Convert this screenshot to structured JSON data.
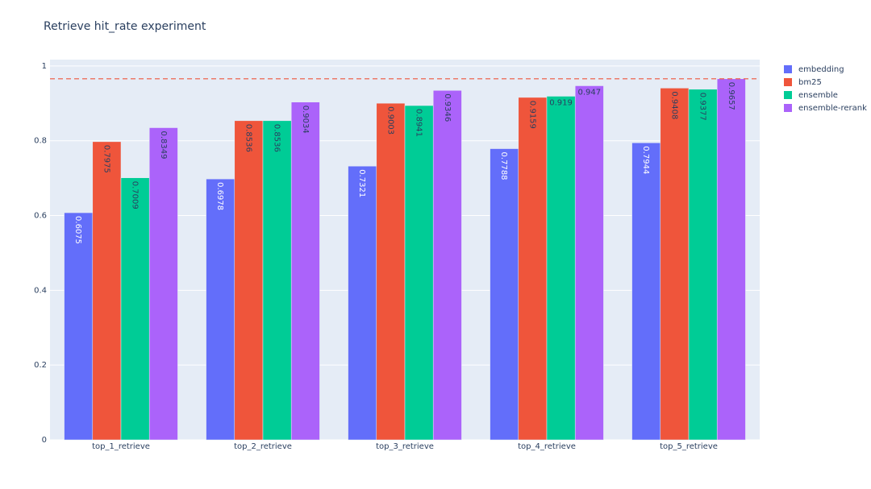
{
  "chart_data": {
    "type": "bar",
    "title": "Retrieve hit_rate experiment",
    "categories": [
      "top_1_retrieve",
      "top_2_retrieve",
      "top_3_retrieve",
      "top_4_retrieve",
      "top_5_retrieve"
    ],
    "series": [
      {
        "name": "embedding",
        "color": "#636efa",
        "values": [
          0.6075,
          0.6978,
          0.7321,
          0.7788,
          0.7944
        ]
      },
      {
        "name": "bm25",
        "color": "#ef553b",
        "values": [
          0.7975,
          0.8536,
          0.9003,
          0.9159,
          0.9408
        ]
      },
      {
        "name": "ensemble",
        "color": "#00cc96",
        "values": [
          0.7009,
          0.8536,
          0.8941,
          0.919,
          0.9377
        ]
      },
      {
        "name": "ensemble-rerank",
        "color": "#ab63fa",
        "values": [
          0.8349,
          0.9034,
          0.9346,
          0.947,
          0.9657
        ]
      }
    ],
    "ylim": [
      0,
      1.017
    ],
    "yticks": [
      0,
      0.2,
      0.4,
      0.6,
      0.8,
      1
    ],
    "grid": true,
    "hline": 0.9657,
    "hline_color": "#ef553b",
    "legend": "top-right"
  }
}
